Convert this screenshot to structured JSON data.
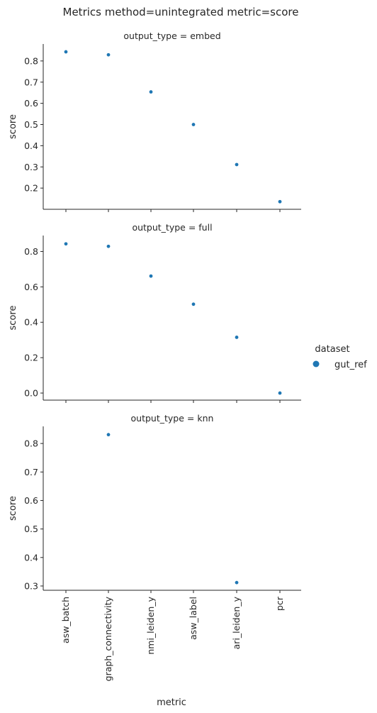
{
  "title": "Metrics method=unintegrated metric=score",
  "legend": {
    "title": "dataset",
    "entries": [
      {
        "label": "gut_ref",
        "color": "#1f77b4"
      }
    ],
    "placement": "right"
  },
  "xlabel": "metric",
  "marker_color": "#1f77b4",
  "chart_data": [
    {
      "type": "scatter",
      "title": "output_type = embed",
      "ylabel": "score",
      "categories": [
        "asw_batch",
        "graph_connectivity",
        "nmi_leiden_y",
        "asw_label",
        "ari_leiden_y",
        "pcr"
      ],
      "yticks": [
        0.2,
        0.3,
        0.4,
        0.5,
        0.6,
        0.7,
        0.8
      ],
      "ytick_labels": [
        "0.2",
        "0.3",
        "0.4",
        "0.5",
        "0.6",
        "0.7",
        "0.8"
      ],
      "ylim": [
        0.1,
        0.88
      ],
      "grid": false,
      "series": [
        {
          "name": "gut_ref",
          "values": [
            0.843,
            0.829,
            0.654,
            0.5,
            0.311,
            0.136
          ]
        }
      ]
    },
    {
      "type": "scatter",
      "title": "output_type = full",
      "ylabel": "score",
      "categories": [
        "asw_batch",
        "graph_connectivity",
        "nmi_leiden_y",
        "asw_label",
        "ari_leiden_y",
        "pcr"
      ],
      "yticks": [
        0.0,
        0.2,
        0.4,
        0.6,
        0.8
      ],
      "ytick_labels": [
        "0.0",
        "0.2",
        "0.4",
        "0.6",
        "0.8"
      ],
      "ylim": [
        -0.04,
        0.89
      ],
      "grid": false,
      "series": [
        {
          "name": "gut_ref",
          "values": [
            0.843,
            0.829,
            0.661,
            0.502,
            0.315,
            0.0
          ]
        }
      ]
    },
    {
      "type": "scatter",
      "title": "output_type = knn",
      "ylabel": "score",
      "categories": [
        "asw_batch",
        "graph_connectivity",
        "nmi_leiden_y",
        "asw_label",
        "ari_leiden_y",
        "pcr"
      ],
      "yticks": [
        0.3,
        0.4,
        0.5,
        0.6,
        0.7,
        0.8
      ],
      "ytick_labels": [
        "0.3",
        "0.4",
        "0.5",
        "0.6",
        "0.7",
        "0.8"
      ],
      "ylim": [
        0.285,
        0.86
      ],
      "grid": false,
      "series": [
        {
          "name": "gut_ref",
          "values": [
            null,
            0.831,
            null,
            null,
            0.312,
            null
          ]
        }
      ]
    }
  ]
}
